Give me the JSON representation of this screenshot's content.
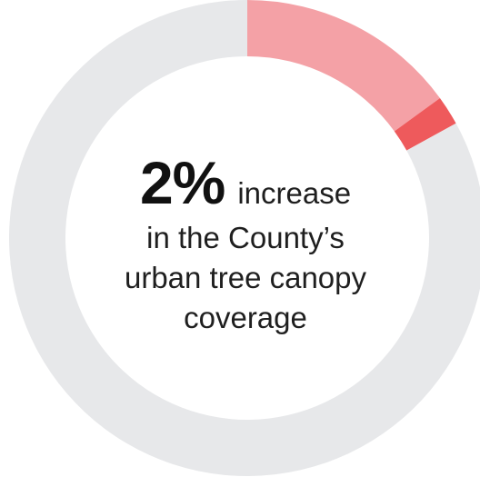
{
  "chart_data": {
    "type": "pie",
    "donut": true,
    "headline_value": "2%",
    "description_lines": [
      "increase",
      "in the County’s",
      "urban tree canopy",
      "coverage"
    ],
    "slices": [
      {
        "value": 15,
        "color": "#f4a1a6"
      },
      {
        "value": 2,
        "color": "#ee5a5c"
      },
      {
        "value": 83,
        "color": "#e7e8ea"
      }
    ],
    "start_angle_deg": 0
  }
}
